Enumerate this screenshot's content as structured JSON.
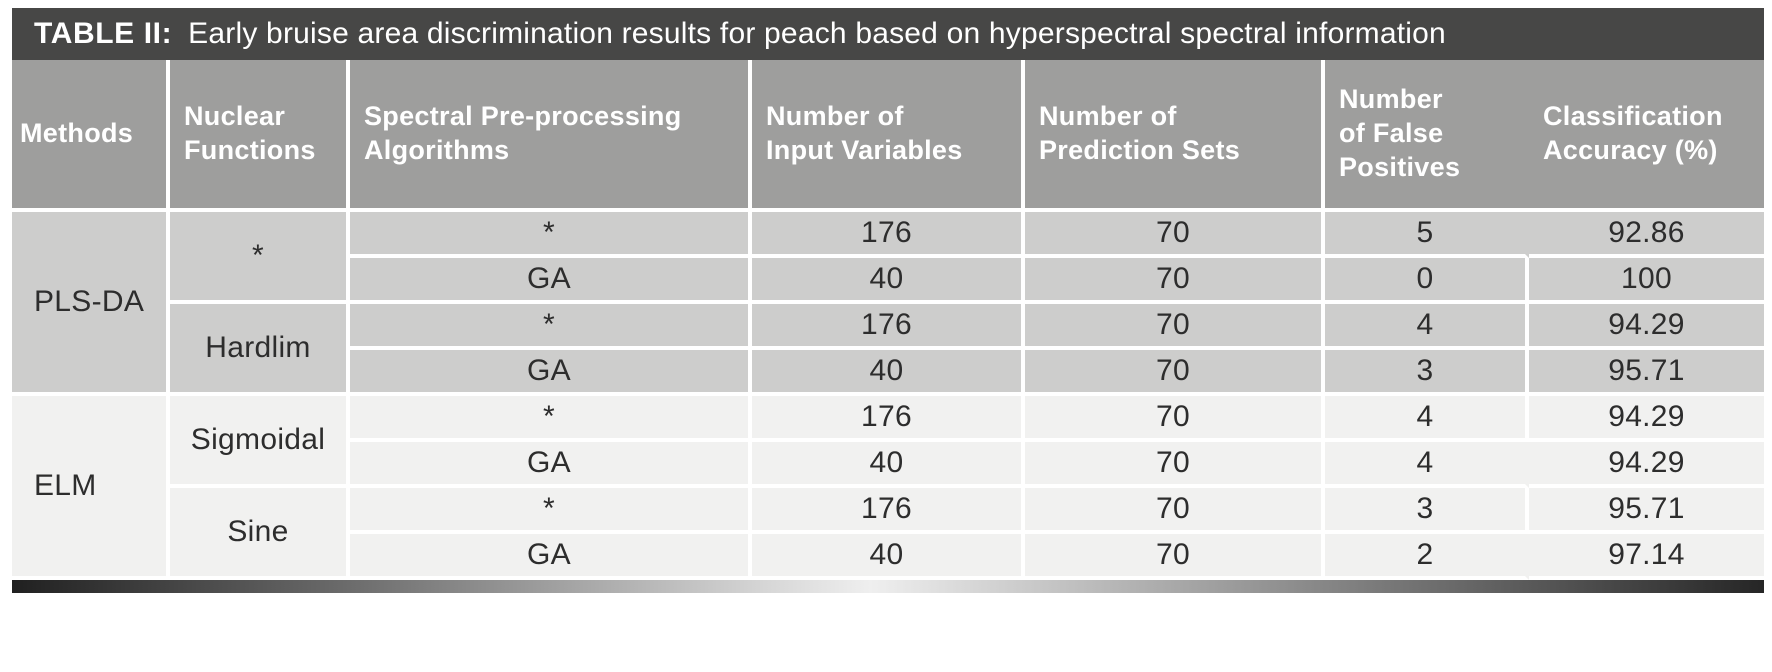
{
  "table": {
    "title": {
      "label": "TABLE II:",
      "caption": "Early bruise area discrimination results for peach based on hyperspectral spectral information"
    },
    "columns": [
      {
        "key": "methods",
        "label": "Methods"
      },
      {
        "key": "nuclear-functions",
        "label": "Nuclear\nFunctions"
      },
      {
        "key": "preprocessing",
        "label": "Spectral Pre-processing\nAlgorithms"
      },
      {
        "key": "input-variables",
        "label": "Number of\nInput Variables"
      },
      {
        "key": "prediction-sets",
        "label": "Number of\nPrediction Sets"
      },
      {
        "key": "false-positives",
        "label": "Number\nof False\nPositives"
      },
      {
        "key": "accuracy",
        "label": "Classification\nAccuracy (%)"
      }
    ],
    "groups": [
      {
        "method": "PLS-DA",
        "subgroups": [
          {
            "nuclear": "*",
            "rows": [
              {
                "pre": "*",
                "input": "176",
                "pred": "70",
                "fp": "5",
                "acc": "92.86",
                "fp_divider": false
              },
              {
                "pre": "GA",
                "input": "40",
                "pred": "70",
                "fp": "0",
                "acc": "100",
                "fp_divider": true
              }
            ]
          },
          {
            "nuclear": "Hardlim",
            "rows": [
              {
                "pre": "*",
                "input": "176",
                "pred": "70",
                "fp": "4",
                "acc": "94.29",
                "fp_divider": true
              },
              {
                "pre": "GA",
                "input": "40",
                "pred": "70",
                "fp": "3",
                "acc": "95.71",
                "fp_divider": true
              }
            ]
          }
        ]
      },
      {
        "method": "ELM",
        "subgroups": [
          {
            "nuclear": "Sigmoidal",
            "rows": [
              {
                "pre": "*",
                "input": "176",
                "pred": "70",
                "fp": "4",
                "acc": "94.29",
                "fp_divider": true
              },
              {
                "pre": "GA",
                "input": "40",
                "pred": "70",
                "fp": "4",
                "acc": "94.29",
                "fp_divider": false
              }
            ]
          },
          {
            "nuclear": "Sine",
            "rows": [
              {
                "pre": "*",
                "input": "176",
                "pred": "70",
                "fp": "3",
                "acc": "95.71",
                "fp_divider": true
              },
              {
                "pre": "GA",
                "input": "40",
                "pred": "70",
                "fp": "2",
                "acc": "97.14",
                "fp_divider": false
              }
            ]
          }
        ]
      }
    ]
  },
  "colors": {
    "title_bar": "#474746",
    "header_bg": "#9e9e9d",
    "plsda_block_bg": "#cdcdcc",
    "elm_block_bg": "#f1f1f0",
    "divider": "#ffffff",
    "header_text": "#ffffff",
    "body_text": "#2d2d2d"
  }
}
